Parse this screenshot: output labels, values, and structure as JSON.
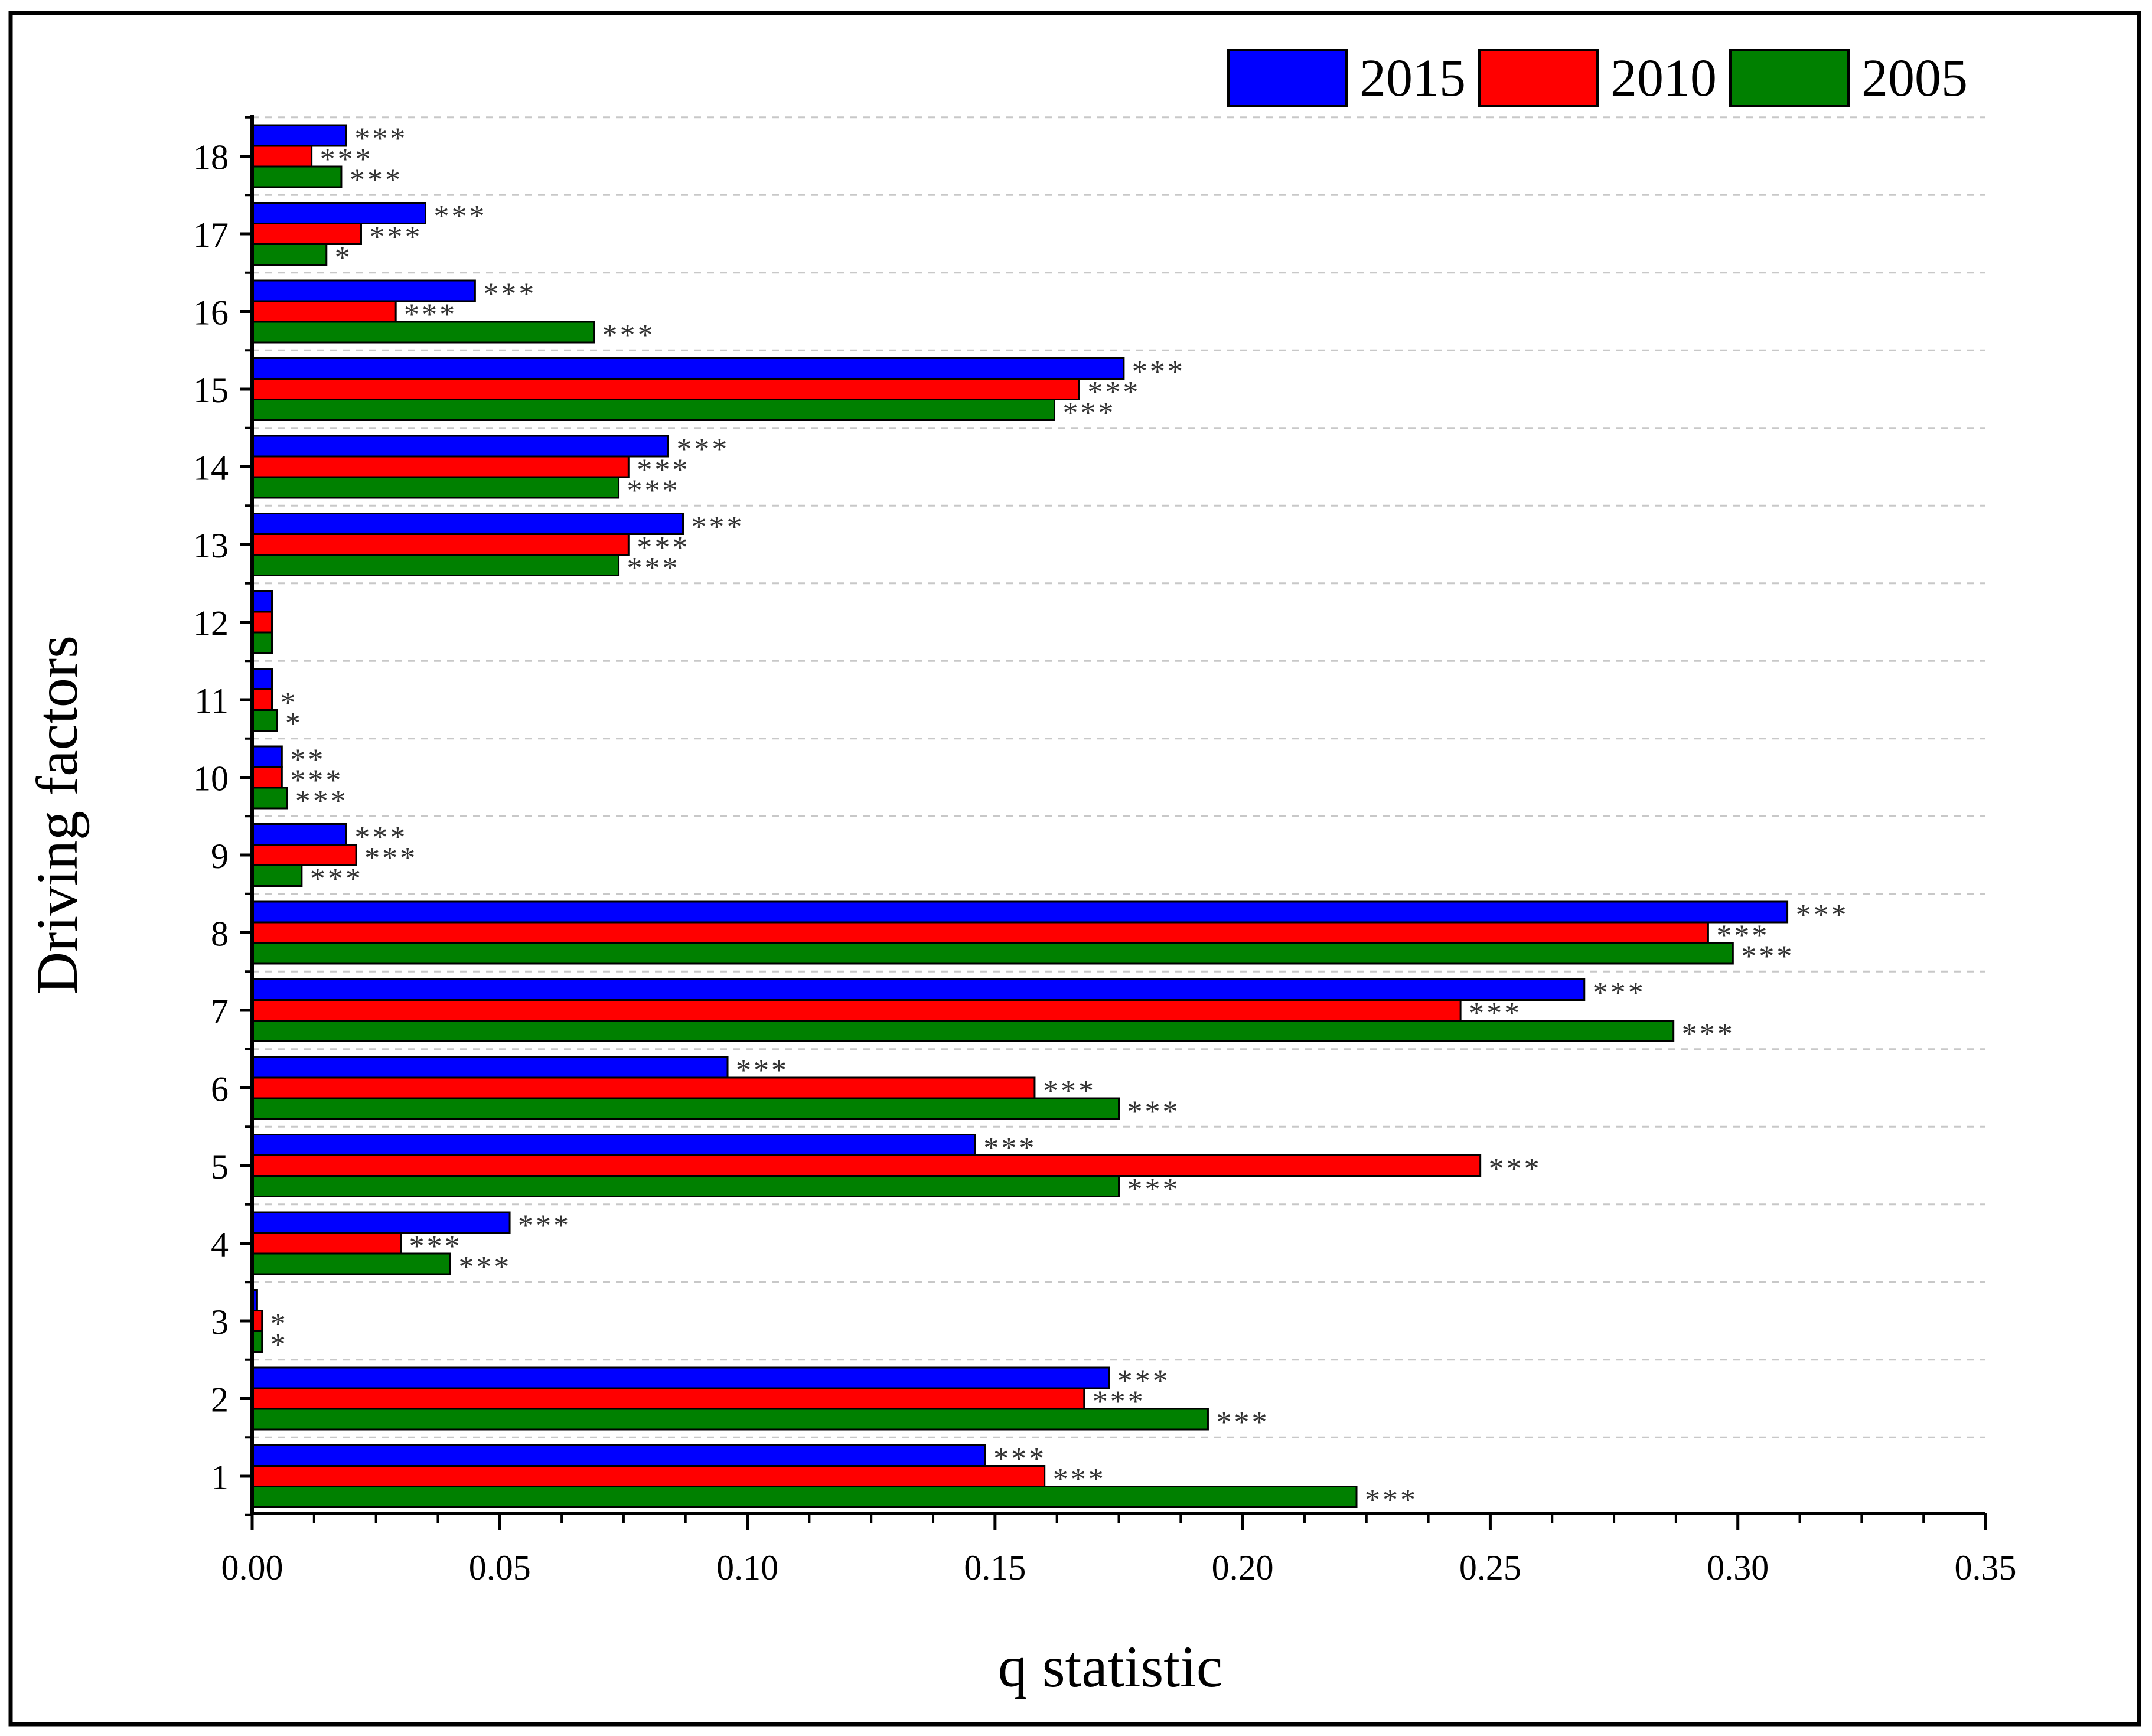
{
  "colors": {
    "2015": "#0000ff",
    "2010": "#ff0000",
    "2005": "#008000",
    "frame": "#000000",
    "grid": "#c8c8c8",
    "annotation": "#333333"
  },
  "chart_data": {
    "type": "bar",
    "orientation": "horizontal",
    "title": "",
    "xlabel": "q statistic",
    "ylabel": "Driving factors",
    "xlim": [
      0,
      0.35
    ],
    "x_ticks": [
      "0.00",
      "0.05",
      "0.10",
      "0.15",
      "0.20",
      "0.25",
      "0.30",
      "0.35"
    ],
    "categories": [
      "1",
      "2",
      "3",
      "4",
      "5",
      "6",
      "7",
      "8",
      "9",
      "10",
      "11",
      "12",
      "13",
      "14",
      "15",
      "16",
      "17",
      "18"
    ],
    "legend": {
      "placement": "top-right",
      "entries": [
        "2015",
        "2010",
        "2005"
      ]
    },
    "grid": {
      "horizontal": "dashed",
      "vertical": "off"
    },
    "series": [
      {
        "name": "2015",
        "values": [
          0.148,
          0.173,
          0.001,
          0.052,
          0.146,
          0.096,
          0.269,
          0.31,
          0.019,
          0.006,
          0.004,
          0.004,
          0.087,
          0.084,
          0.176,
          0.045,
          0.035,
          0.019
        ],
        "significance": [
          "***",
          "***",
          "",
          "***",
          "***",
          "***",
          "***",
          "***",
          "***",
          "**",
          "",
          "",
          "***",
          "***",
          "***",
          "***",
          "***",
          "***"
        ]
      },
      {
        "name": "2010",
        "values": [
          0.16,
          0.168,
          0.002,
          0.03,
          0.248,
          0.158,
          0.244,
          0.294,
          0.021,
          0.006,
          0.004,
          0.004,
          0.076,
          0.076,
          0.167,
          0.029,
          0.022,
          0.012
        ],
        "significance": [
          "***",
          "***",
          "*",
          "***",
          "***",
          "***",
          "***",
          "***",
          "***",
          "***",
          "*",
          "",
          "***",
          "***",
          "***",
          "***",
          "***",
          "***"
        ]
      },
      {
        "name": "2005",
        "values": [
          0.223,
          0.193,
          0.002,
          0.04,
          0.175,
          0.175,
          0.287,
          0.299,
          0.01,
          0.007,
          0.005,
          0.004,
          0.074,
          0.074,
          0.162,
          0.069,
          0.015,
          0.018
        ],
        "significance": [
          "***",
          "***",
          "*",
          "***",
          "***",
          "***",
          "***",
          "***",
          "***",
          "***",
          "*",
          "",
          "***",
          "***",
          "***",
          "***",
          "*",
          "***"
        ]
      }
    ]
  }
}
